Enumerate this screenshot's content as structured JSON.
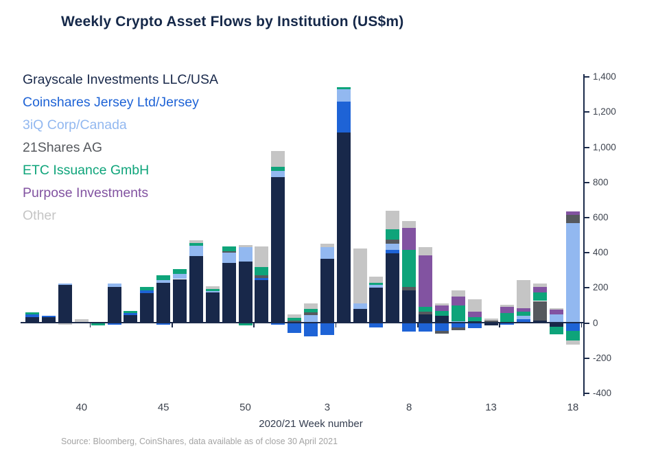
{
  "title": "Weekly Crypto Asset Flows by Institution (US$m)",
  "source": "Source: Bloomberg, CoinShares, data available as of close 30 April 2021",
  "chart_data": {
    "type": "bar",
    "stacked": true,
    "title": "Weekly Crypto Asset Flows by Institution (US$m)",
    "xlabel": "2020/21 Week number",
    "ylabel": "",
    "ylim": [
      -400,
      1400
    ],
    "grid": false,
    "legend_position": "top-left",
    "axis_color": "#1b2a4a",
    "tick_label_color": "#3d434e",
    "y_ticks": [
      {
        "value": -400,
        "label": "-400"
      },
      {
        "value": -200,
        "label": "-200"
      },
      {
        "value": 0,
        "label": "0"
      },
      {
        "value": 200,
        "label": "200"
      },
      {
        "value": 400,
        "label": "400"
      },
      {
        "value": 600,
        "label": "600"
      },
      {
        "value": 800,
        "label": "800"
      },
      {
        "value": 1000,
        "label": "1,000"
      },
      {
        "value": 1200,
        "label": "1,200"
      },
      {
        "value": 1400,
        "label": "1,400"
      }
    ],
    "categories": [
      "37",
      "38",
      "39",
      "40",
      "41",
      "42",
      "43",
      "44",
      "45",
      "46",
      "47",
      "48",
      "49",
      "50",
      "51",
      "52",
      "1",
      "2",
      "3",
      "4",
      "5",
      "6",
      "7",
      "8",
      "9",
      "10",
      "11",
      "12",
      "13",
      "14",
      "15",
      "16",
      "17",
      "18"
    ],
    "x_tick_labels": [
      "40",
      "45",
      "50",
      "3",
      "8",
      "13",
      "18"
    ],
    "x_tick_indices": [
      3,
      8,
      13,
      18,
      23,
      28,
      33
    ],
    "series": [
      {
        "name": "Grayscale Investments LLC/USA",
        "key": "grayscale",
        "color": "#18284a",
        "values": [
          35,
          35,
          215,
          5,
          0,
          205,
          45,
          170,
          230,
          250,
          380,
          175,
          340,
          350,
          245,
          830,
          5,
          0,
          365,
          1085,
          80,
          200,
          395,
          185,
          50,
          40,
          0,
          10,
          -15,
          0,
          5,
          15,
          -20,
          0
        ]
      },
      {
        "name": "Coinshares Jersey Ltd/Jersey",
        "key": "coinshares",
        "color": "#1e63d6",
        "values": [
          15,
          5,
          0,
          0,
          0,
          -10,
          10,
          15,
          -10,
          0,
          0,
          0,
          0,
          0,
          10,
          -10,
          -55,
          -75,
          -70,
          175,
          0,
          -25,
          20,
          -50,
          -50,
          -45,
          -25,
          -30,
          0,
          -10,
          15,
          0,
          0,
          -45
        ]
      },
      {
        "name": "3iQ Corp/Canada",
        "key": "3iq",
        "color": "#92b8f0",
        "values": [
          0,
          0,
          10,
          0,
          0,
          20,
          0,
          0,
          15,
          30,
          60,
          5,
          60,
          80,
          0,
          35,
          0,
          45,
          65,
          70,
          30,
          15,
          35,
          0,
          0,
          0,
          10,
          0,
          0,
          0,
          20,
          0,
          50,
          570
        ]
      },
      {
        "name": "21Shares AG",
        "key": "21shares",
        "color": "#56595e",
        "values": [
          0,
          0,
          0,
          0,
          0,
          0,
          0,
          0,
          0,
          0,
          0,
          0,
          10,
          0,
          15,
          0,
          10,
          15,
          0,
          0,
          0,
          0,
          25,
          20,
          15,
          -15,
          -15,
          0,
          15,
          0,
          0,
          110,
          0,
          45
        ]
      },
      {
        "name": "ETC Issuance GmbH",
        "key": "etc",
        "color": "#0ea47a",
        "values": [
          10,
          0,
          0,
          0,
          -15,
          0,
          15,
          20,
          25,
          25,
          15,
          15,
          25,
          -15,
          50,
          25,
          15,
          20,
          0,
          10,
          0,
          15,
          60,
          210,
          25,
          30,
          90,
          25,
          0,
          55,
          25,
          50,
          -45,
          -55
        ]
      },
      {
        "name": "Purpose Investments",
        "key": "purpose",
        "color": "#8253a1",
        "values": [
          0,
          0,
          0,
          0,
          0,
          0,
          0,
          0,
          0,
          0,
          0,
          0,
          0,
          0,
          0,
          0,
          0,
          0,
          0,
          0,
          0,
          0,
          0,
          125,
          295,
          30,
          50,
          30,
          0,
          35,
          20,
          30,
          25,
          20
        ]
      },
      {
        "name": "Other",
        "key": "other",
        "color": "#c5c5c5",
        "values": [
          0,
          0,
          -10,
          15,
          5,
          0,
          0,
          0,
          0,
          0,
          15,
          15,
          0,
          15,
          115,
          90,
          20,
          30,
          20,
          0,
          315,
          35,
          105,
          40,
          45,
          10,
          35,
          70,
          10,
          15,
          160,
          20,
          10,
          -25
        ]
      }
    ]
  }
}
